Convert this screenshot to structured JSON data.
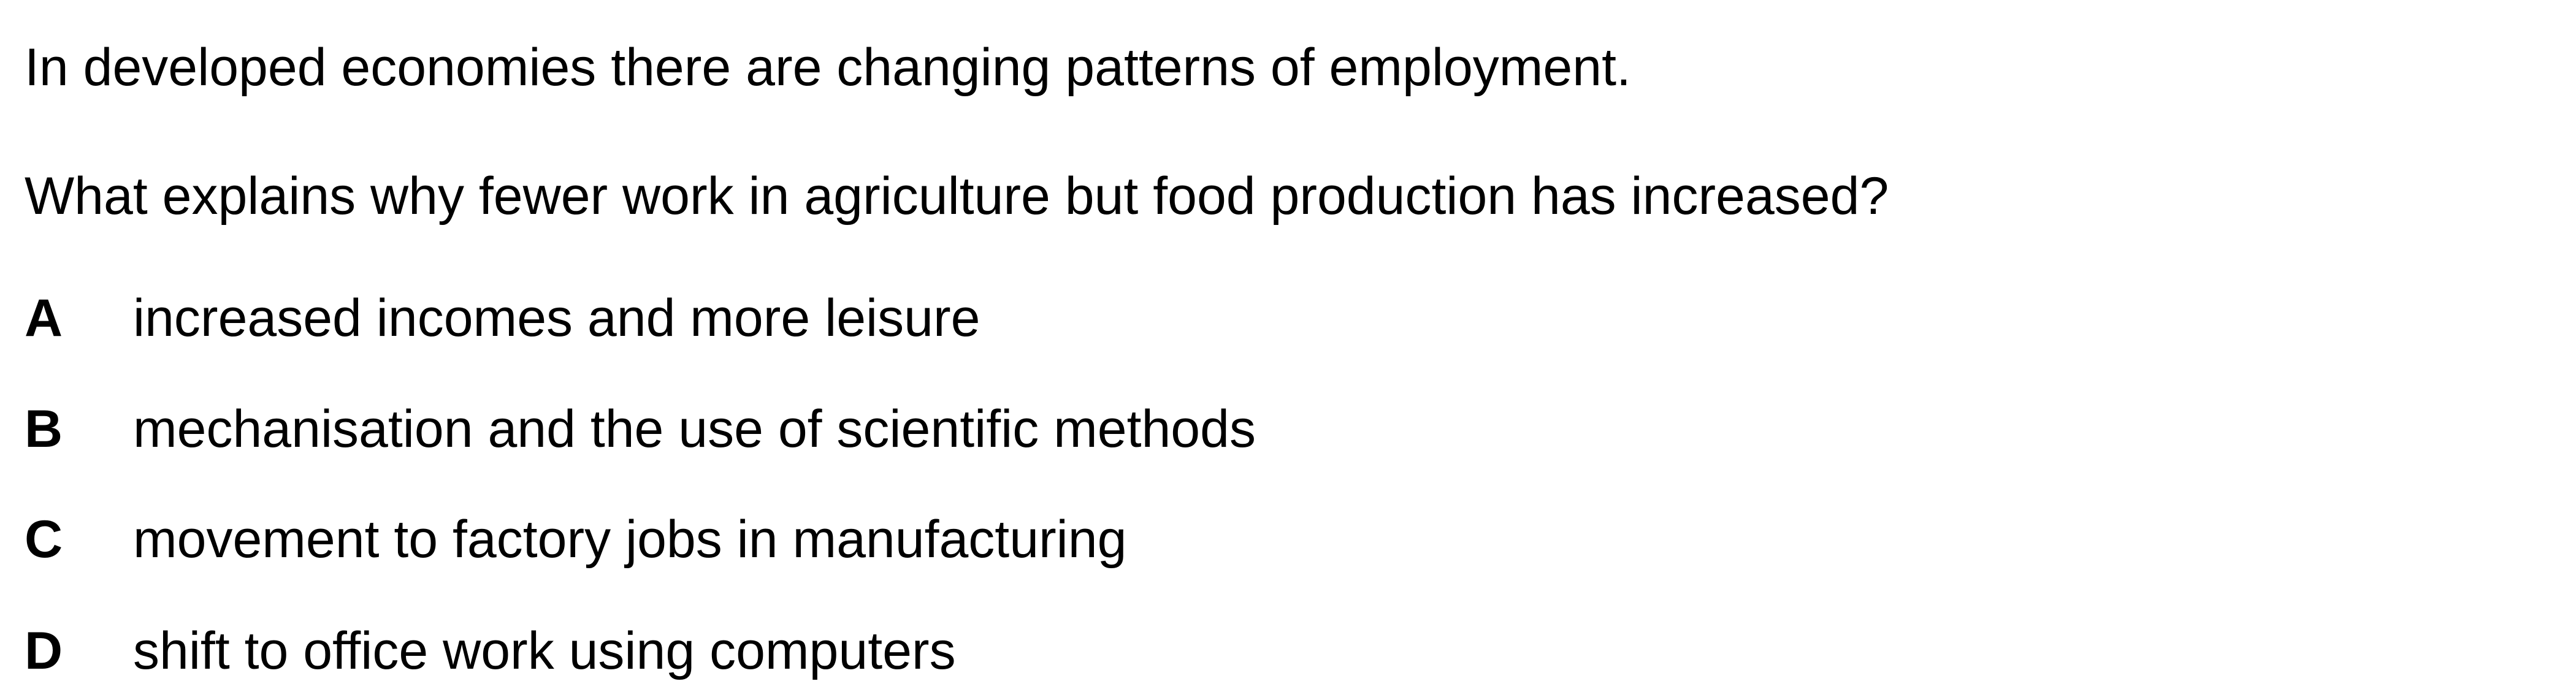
{
  "question": {
    "stem_line_1": "In developed economies there are changing patterns of employment.",
    "stem_line_2": "What explains why fewer work in agriculture but food production has increased?",
    "options": [
      {
        "letter": "A",
        "text": "increased incomes and more leisure"
      },
      {
        "letter": "B",
        "text": "mechanisation and the use of scientific methods"
      },
      {
        "letter": "C",
        "text": "movement to factory jobs in manufacturing"
      },
      {
        "letter": "D",
        "text": "shift to office work using computers"
      }
    ]
  }
}
